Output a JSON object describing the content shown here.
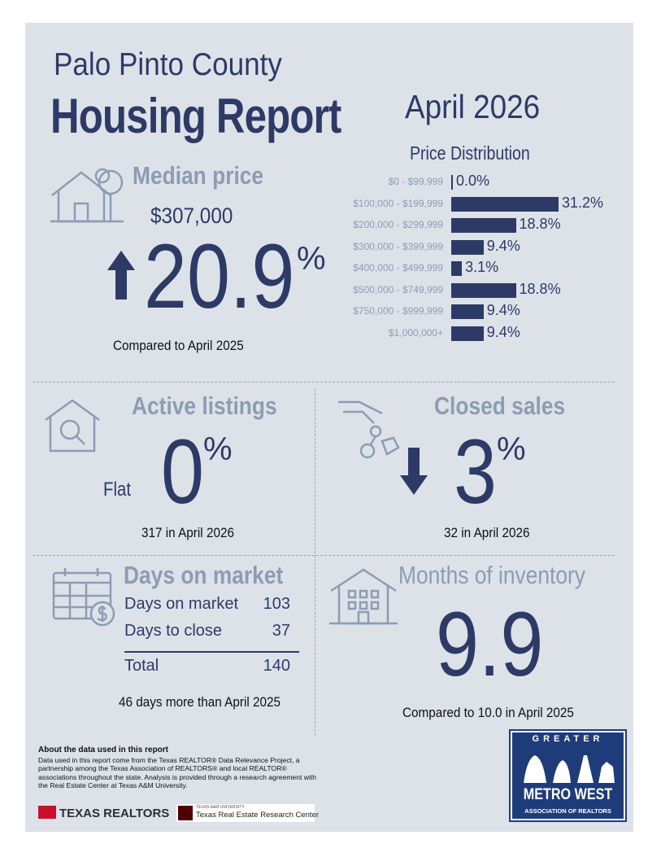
{
  "header": {
    "county": "Palo Pinto County",
    "report_title": "Housing Report",
    "month": "April 2026"
  },
  "median_price": {
    "title": "Median price",
    "value": "$307,000",
    "change_number": "20.9",
    "change_unit": "%",
    "direction": "up",
    "comparison": "Compared to April 2025"
  },
  "price_distribution": {
    "title": "Price Distribution",
    "rows": [
      {
        "label": "$0 - $99,999",
        "value": "0.0%"
      },
      {
        "label": "$100,000 - $199,999",
        "value": "31.2%"
      },
      {
        "label": "$200,000 - $299,999",
        "value": "18.8%"
      },
      {
        "label": "$300,000 - $399,999",
        "value": "9.4%"
      },
      {
        "label": "$400,000 - $499,999",
        "value": "3.1%"
      },
      {
        "label": "$500,000 - $749,999",
        "value": "18.8%"
      },
      {
        "label": "$750,000 - $999,999",
        "value": "9.4%"
      },
      {
        "label": "$1,000,000+",
        "value": "9.4%"
      }
    ]
  },
  "active_listings": {
    "title": "Active listings",
    "status": "Flat",
    "change_number": "0",
    "change_unit": "%",
    "note": "317 in April 2026"
  },
  "closed_sales": {
    "title": "Closed sales",
    "direction": "down",
    "change_number": "3",
    "change_unit": "%",
    "note": "32 in April 2026"
  },
  "days_on_market": {
    "title": "Days on market",
    "rows": [
      {
        "label": "Days on market",
        "value": "103"
      },
      {
        "label": "Days to close",
        "value": "37"
      }
    ],
    "total_label": "Total",
    "total_value": "140",
    "note": "46 days more than April 2025"
  },
  "months_inventory": {
    "title": "Months of inventory",
    "value": "9.9",
    "note": "Compared to 10.0 in April 2025"
  },
  "footer": {
    "about_heading": "About the data used in this report",
    "about_text": "Data used in this report come from the Texas REALTOR® Data Relevance Project, a partnership among the Texas Association of REALTORS® and local REALTOR® associations throughout the state. Analysis is provided through a research agreement with the Real Estate Center at Texas A&M University.",
    "texas_realtors_logo": "TEXAS REALTORS",
    "tamu_small": "TEXAS A&M UNIVERSITY",
    "tamu_name": "Texas Real Estate Research Center",
    "assoc_logo_top": "GREATER",
    "assoc_logo_mid": "METRO WEST",
    "assoc_logo_bottom": "ASSOCIATION OF REALTORS"
  },
  "colors": {
    "navy": "#2e3a66",
    "muted": "#8d9cb3",
    "panel": "#dde2e9"
  }
}
